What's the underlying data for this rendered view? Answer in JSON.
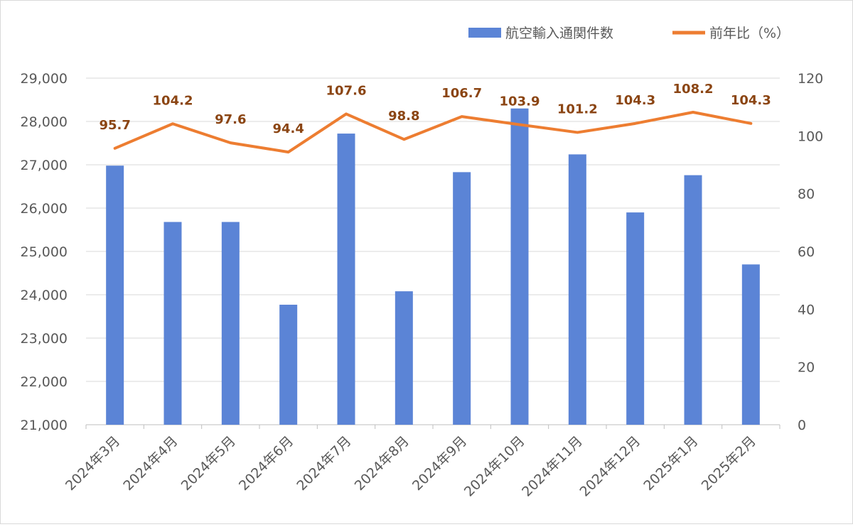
{
  "chart_data": {
    "type": "bar+line",
    "categories": [
      "2024年3月",
      "2024年4月",
      "2024年5月",
      "2024年6月",
      "2024年7月",
      "2024年8月",
      "2024年9月",
      "2024年10月",
      "2024年11月",
      "2024年12月",
      "2025年1月",
      "2025年2月"
    ],
    "series": [
      {
        "name": "航空輸入通関件数",
        "type": "bar",
        "axis": "left",
        "color": "#5b84d6",
        "values": [
          26980,
          25680,
          25680,
          23770,
          27720,
          24080,
          26830,
          28300,
          27240,
          25900,
          26760,
          24700
        ]
      },
      {
        "name": "前年比（%）",
        "type": "line",
        "axis": "right",
        "color": "#ed7d31",
        "values": [
          95.7,
          104.2,
          97.6,
          94.4,
          107.6,
          98.8,
          106.7,
          103.9,
          101.2,
          104.3,
          108.2,
          104.3
        ],
        "labels": [
          "95.7",
          "104.2",
          "97.6",
          "94.4",
          "107.6",
          "98.8",
          "106.7",
          "103.9",
          "101.2",
          "104.3",
          "108.2",
          "104.3"
        ]
      }
    ],
    "y_left": {
      "min": 21000,
      "max": 29000,
      "ticks": [
        "21,000",
        "22,000",
        "23,000",
        "24,000",
        "25,000",
        "26,000",
        "27,000",
        "28,000",
        "29,000"
      ]
    },
    "y_right": {
      "min": 0,
      "max": 120,
      "ticks": [
        "0",
        "20",
        "40",
        "60",
        "80",
        "100",
        "120"
      ]
    },
    "grid": true,
    "legend_position": "top-right"
  }
}
